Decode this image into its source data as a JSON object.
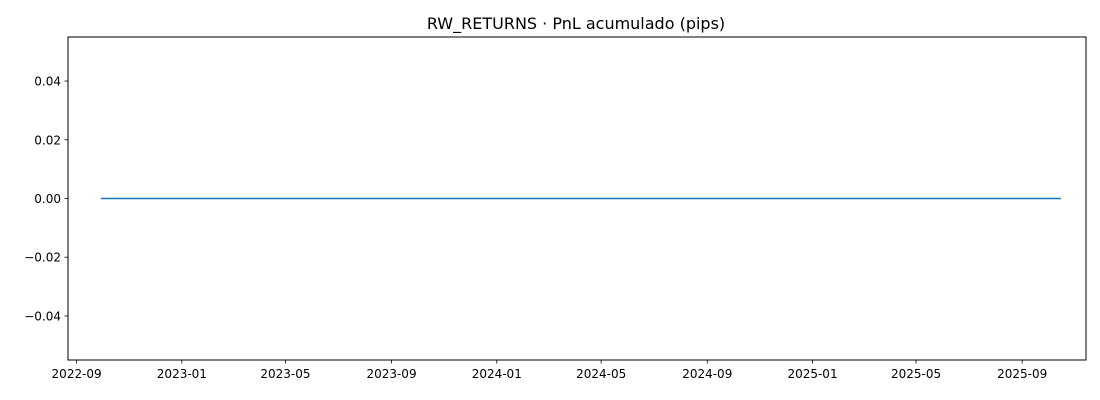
{
  "chart_data": {
    "type": "line",
    "title": "RW_RETURNS · PnL acumulado (pips)",
    "xlabel": "",
    "ylabel": "",
    "grid": false,
    "xlim": [
      "2022-08-22",
      "2025-11-14"
    ],
    "ylim": [
      -0.055,
      0.055
    ],
    "x_ticks": [
      {
        "value": "2022-09-01",
        "label": "2022-09"
      },
      {
        "value": "2023-01-01",
        "label": "2023-01"
      },
      {
        "value": "2023-05-01",
        "label": "2023-05"
      },
      {
        "value": "2023-09-01",
        "label": "2023-09"
      },
      {
        "value": "2024-01-01",
        "label": "2024-01"
      },
      {
        "value": "2024-05-01",
        "label": "2024-05"
      },
      {
        "value": "2024-09-01",
        "label": "2024-09"
      },
      {
        "value": "2025-01-01",
        "label": "2025-01"
      },
      {
        "value": "2025-05-01",
        "label": "2025-05"
      },
      {
        "value": "2025-09-01",
        "label": "2025-09"
      }
    ],
    "y_ticks": [
      {
        "value": 0.04,
        "label": "0.04"
      },
      {
        "value": 0.02,
        "label": "0.02"
      },
      {
        "value": 0.0,
        "label": "0.00"
      },
      {
        "value": -0.02,
        "label": "−0.02"
      },
      {
        "value": -0.04,
        "label": "−0.04"
      }
    ],
    "series": [
      {
        "color": "#1f77b4",
        "x": [
          "2022-09-30",
          "2025-10-15"
        ],
        "y": [
          0,
          0
        ]
      }
    ]
  }
}
